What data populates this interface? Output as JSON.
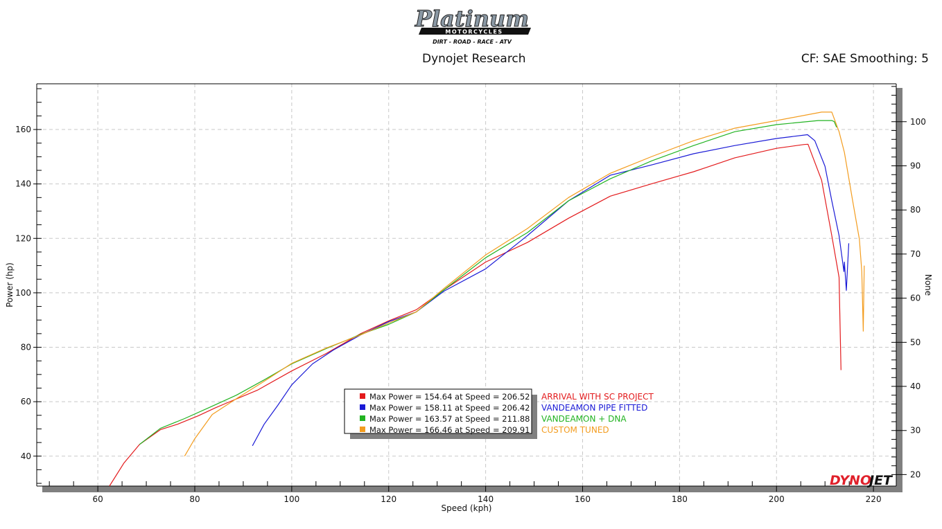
{
  "header": {
    "logo_text": "Platinum",
    "logo_subtitle": "MOTORCYCLES",
    "logo_tagline": "DIRT - ROAD - RACE - ATV",
    "title": "Dynojet Research",
    "settings": "CF: SAE Smoothing: 5"
  },
  "watermark": {
    "dyno": "DYNO",
    "jet": "JET"
  },
  "chart_data": {
    "type": "line",
    "title": "Dynojet Research",
    "xlabel": "Speed (kph)",
    "ylabel": "Power (hp)",
    "y2label": "None",
    "xlim": [
      47.4,
      224.7
    ],
    "ylim": [
      29,
      176.8
    ],
    "y2lim": [
      17.4,
      108.6
    ],
    "xticks": [
      60,
      80,
      100,
      120,
      140,
      160,
      180,
      200,
      220
    ],
    "yticks": [
      40,
      60,
      80,
      100,
      120,
      140,
      160
    ],
    "y2ticks": [
      20,
      30,
      40,
      50,
      60,
      70,
      80,
      90,
      100
    ],
    "grid": true,
    "legend_position": "bottom-center",
    "series": [
      {
        "name": "ARRIVAL WITH SC PROJECT",
        "color": "#e31a1c",
        "legend": "Max Power = 154.64 at Speed = 206.52",
        "x": [
          62.4,
          65.4,
          68.6,
          72.9,
          76.4,
          80.7,
          84.3,
          87.1,
          92.9,
          100,
          107.1,
          114.3,
          120,
          125.7,
          131.4,
          140,
          148.6,
          157.1,
          165.7,
          174.3,
          182.9,
          191.4,
          200,
          205.7,
          206.5,
          207.4,
          209.3,
          211.4,
          212.9,
          213.3
        ],
        "y": [
          29,
          37.5,
          44.3,
          49.7,
          51.7,
          54.8,
          57.8,
          59.9,
          64.2,
          71.3,
          77.7,
          85.1,
          89.7,
          93.8,
          101.1,
          111.3,
          118.5,
          127.4,
          135.5,
          140.1,
          144.5,
          149.6,
          153.1,
          154.5,
          154.6,
          150.3,
          141.4,
          121,
          105.7,
          71.6
        ]
      },
      {
        "name": "VANDEAMON PIPE FITTED",
        "color": "#1a1ad6",
        "legend": "Max Power = 158.11 at Speed = 206.42",
        "x": [
          91.9,
          94.3,
          97.1,
          100,
          104.3,
          108.6,
          114.3,
          120,
          125.7,
          131.4,
          140,
          148.6,
          157.1,
          165.7,
          174.3,
          182.9,
          191.4,
          200,
          206.4,
          207.9,
          210,
          211.4,
          212.9,
          213.9,
          214,
          214.4,
          214.9
        ],
        "y": [
          43.8,
          51.7,
          58.6,
          66.2,
          73.9,
          79,
          84.6,
          89.4,
          93,
          100.6,
          108.8,
          121,
          133.8,
          143.2,
          147,
          151.1,
          154.1,
          156.7,
          158.1,
          155.9,
          146.5,
          133.8,
          121,
          107.8,
          111.3,
          100.9,
          118.2
        ]
      },
      {
        "name": "VANDEAMON + DNA",
        "color": "#22b322",
        "legend": "Max Power = 163.57 at Speed = 211.88",
        "x": [
          68.6,
          72.9,
          77.9,
          82.9,
          88.6,
          94.3,
          100,
          107.1,
          114.3,
          120,
          125.7,
          131.4,
          140,
          148.6,
          157.1,
          165.7,
          174.3,
          182.9,
          191.4,
          200,
          208.6,
          211.4,
          211.9,
          212.4
        ],
        "y": [
          44.3,
          50.2,
          53.8,
          57.8,
          62.4,
          68,
          73.9,
          79.5,
          84.8,
          88.4,
          93,
          101.1,
          112.9,
          122.1,
          133.8,
          141.9,
          148.5,
          154.1,
          159.2,
          161.8,
          163.3,
          163.3,
          162.9,
          160.8
        ]
      },
      {
        "name": "CUSTOM TUNED",
        "color": "#f39c1e",
        "legend": "Max Power = 166.46 at Speed = 209.91",
        "x": [
          77.9,
          80,
          83.6,
          88.6,
          94.3,
          100,
          107.1,
          114.3,
          120,
          125.7,
          131.4,
          140,
          148.6,
          157.1,
          165.7,
          174.3,
          182.9,
          191.4,
          200,
          209.3,
          211.4,
          212.9,
          214,
          215.7,
          217.1,
          217.6,
          217.9,
          218.1
        ],
        "y": [
          40,
          46.4,
          55.3,
          61.1,
          67.5,
          74.1,
          79.7,
          84.6,
          88.9,
          93,
          101.6,
          113.9,
          123.6,
          135,
          143.9,
          150.1,
          155.9,
          160.5,
          163.3,
          166.4,
          166.4,
          159.2,
          151.6,
          133.8,
          119.7,
          107.8,
          85.9,
          110
        ]
      }
    ]
  }
}
